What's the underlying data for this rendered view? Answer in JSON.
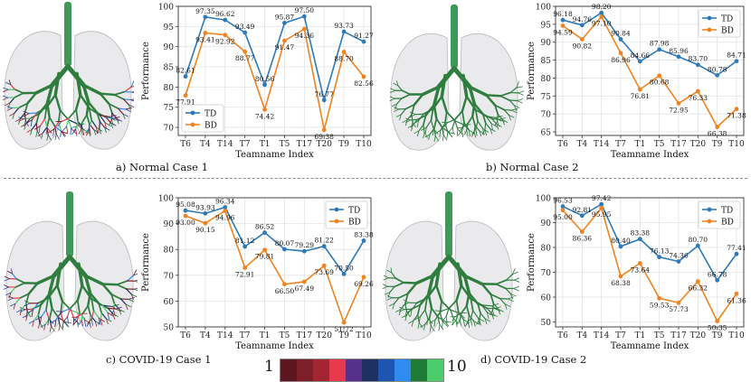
{
  "figure": {
    "captions": {
      "a": "a) Normal Case 1",
      "b": "b) Normal Case 2",
      "c": "c) COVID-19 Case 1",
      "d": "d) COVID-19 Case 2"
    },
    "colorbar": {
      "min_label": "1",
      "max_label": "10",
      "colors": [
        "#5b1620",
        "#7d1e28",
        "#a32534",
        "#e83a4c",
        "#56308a",
        "#1e3060",
        "#1d55b0",
        "#2f8bf0",
        "#1e7a35",
        "#4ccc6a"
      ]
    },
    "lung_colors": {
      "trachea": "#3f9a5a",
      "airway": "#2f7d3f",
      "lung": "#d9d9dc"
    }
  },
  "chart_data": [
    {
      "id": "a",
      "type": "line",
      "categories": [
        "T6",
        "T4",
        "T14",
        "T7",
        "T1",
        "T5",
        "T17",
        "T20",
        "T9",
        "T10"
      ],
      "series": [
        {
          "name": "TD",
          "color": "#2e7ab8",
          "values": [
            82.61,
            97.35,
            96.62,
            93.49,
            80.56,
            95.87,
            97.5,
            76.77,
            93.73,
            91.27
          ],
          "labels": [
            "82.61",
            "97.35",
            "96.62",
            "93.49",
            "80.56",
            "95.87",
            "97.50",
            "76.77",
            "93.73",
            "91.27"
          ]
        },
        {
          "name": "BD",
          "color": "#f0831f",
          "values": [
            77.91,
            93.41,
            92.92,
            88.77,
            74.42,
            91.47,
            94.36,
            69.38,
            88.7,
            82.56
          ],
          "labels": [
            "77.91",
            "93.41",
            "92.92",
            "88.77",
            "74.42",
            "91.47",
            "94.36",
            "69.38",
            "88.70",
            "82.56"
          ]
        }
      ],
      "xlabel": "Teamname Index",
      "ylabel": "Performance",
      "ylim": [
        68,
        100
      ],
      "yticks": [
        70,
        75,
        80,
        85,
        90,
        95,
        100
      ],
      "legend": "bottom-left",
      "grid": true
    },
    {
      "id": "b",
      "type": "line",
      "categories": [
        "T6",
        "T4",
        "T14",
        "T7",
        "T1",
        "T5",
        "T17",
        "T20",
        "T9",
        "T10"
      ],
      "series": [
        {
          "name": "TD",
          "color": "#2e7ab8",
          "values": [
            96.18,
            94.76,
            98.2,
            90.84,
            84.66,
            87.98,
            85.96,
            83.7,
            80.78,
            84.71
          ],
          "labels": [
            "96.18",
            "94.76",
            "98.20",
            "90.84",
            "84.66",
            "87.98",
            "85.96",
            "83.70",
            "80.78",
            "84.71"
          ]
        },
        {
          "name": "BD",
          "color": "#f0831f",
          "values": [
            94.59,
            90.82,
            97.1,
            86.96,
            76.81,
            80.68,
            72.95,
            76.33,
            66.38,
            71.38
          ],
          "labels": [
            "94.59",
            "90.82",
            "97.10",
            "86.96",
            "76.81",
            "80.68",
            "72.95",
            "76.33",
            "66.38",
            "71.38"
          ]
        }
      ],
      "xlabel": "Teamname Index",
      "ylabel": "Performance",
      "ylim": [
        64,
        100
      ],
      "yticks": [
        65,
        70,
        75,
        80,
        85,
        90,
        95,
        100
      ],
      "legend": "top-right",
      "grid": true
    },
    {
      "id": "c",
      "type": "line",
      "categories": [
        "T6",
        "T4",
        "T14",
        "T7",
        "T1",
        "T5",
        "T17",
        "T20",
        "T9",
        "T10"
      ],
      "series": [
        {
          "name": "TD",
          "color": "#2e7ab8",
          "values": [
            95.08,
            93.93,
            96.34,
            81.12,
            86.52,
            80.07,
            79.29,
            81.22,
            70.5,
            83.38
          ],
          "labels": [
            "95.08",
            "93.93",
            "96.34",
            "81.12",
            "86.52",
            "80.07",
            "79.29",
            "81.22",
            "70.50",
            "83.38"
          ]
        },
        {
          "name": "BD",
          "color": "#f0831f",
          "values": [
            93.0,
            90.15,
            94.96,
            72.91,
            79.81,
            66.5,
            67.49,
            73.69,
            51.72,
            69.26
          ],
          "labels": [
            "93.00",
            "90.15",
            "94.96",
            "72.91",
            "79.81",
            "66.50",
            "67.49",
            "73.69",
            "51.72",
            "69.26"
          ]
        }
      ],
      "xlabel": "Teamname Index",
      "ylabel": "Performance",
      "ylim": [
        50,
        100
      ],
      "yticks": [
        50,
        60,
        70,
        80,
        90,
        100
      ],
      "legend": "top-right",
      "grid": true
    },
    {
      "id": "d",
      "type": "line",
      "categories": [
        "T6",
        "T4",
        "T14",
        "T7",
        "T1",
        "T5",
        "T17",
        "T20",
        "T9",
        "T10"
      ],
      "series": [
        {
          "name": "TD",
          "color": "#2e7ab8",
          "values": [
            96.53,
            92.81,
            97.42,
            80.4,
            83.38,
            76.13,
            74.36,
            80.7,
            66.78,
            77.41
          ],
          "labels": [
            "96.53",
            "92.81",
            "97.42",
            "80.40",
            "83.38",
            "76.13",
            "74.36",
            "80.70",
            "66.78",
            "77.41"
          ]
        },
        {
          "name": "BD",
          "color": "#f0831f",
          "values": [
            95.0,
            86.36,
            95.95,
            68.38,
            73.64,
            59.53,
            57.73,
            66.32,
            50.35,
            61.36
          ],
          "labels": [
            "95.00",
            "86.36",
            "95.95",
            "68.38",
            "73.64",
            "59.53",
            "57.73",
            "66.32",
            "50.35",
            "61.36"
          ]
        }
      ],
      "xlabel": "Teamname Index",
      "ylabel": "Performance",
      "ylim": [
        48,
        100
      ],
      "yticks": [
        50,
        60,
        70,
        80,
        90,
        100
      ],
      "legend": "top-right",
      "grid": true
    }
  ]
}
